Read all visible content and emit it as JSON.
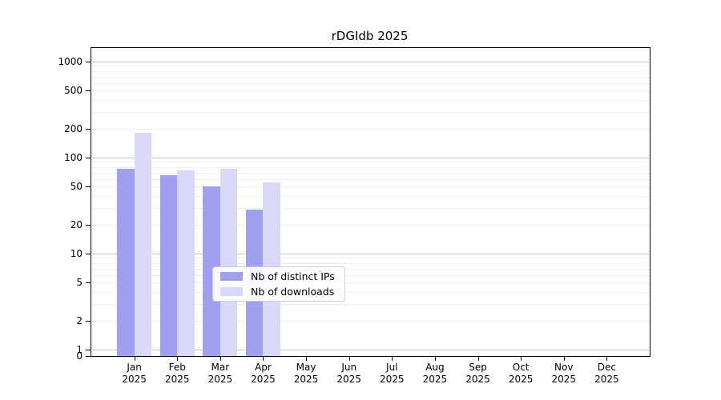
{
  "title": "rDGIdb 2025",
  "chart_data": {
    "type": "bar",
    "title": "rDGIdb 2025",
    "categories": [
      "Jan 2025",
      "Feb 2025",
      "Mar 2025",
      "Apr 2025",
      "May 2025",
      "Jun 2025",
      "Jul 2025",
      "Aug 2025",
      "Sep 2025",
      "Oct 2025",
      "Nov 2025",
      "Dec 2025"
    ],
    "series": [
      {
        "name": "Nb of distinct IPs",
        "color": "#a0a0f0",
        "values": [
          77,
          65,
          50,
          29,
          null,
          null,
          null,
          null,
          null,
          null,
          null,
          null
        ]
      },
      {
        "name": "Nb of downloads",
        "color": "#d8d8f8",
        "values": [
          181,
          74,
          77,
          55,
          null,
          null,
          null,
          null,
          null,
          null,
          null,
          null
        ]
      }
    ],
    "xlabel": "",
    "ylabel": "",
    "yscale": "symlog",
    "y_ticks": [
      0,
      1,
      2,
      5,
      10,
      20,
      50,
      100,
      200,
      500,
      1000
    ],
    "ylim": [
      0,
      1400
    ],
    "grid": true,
    "legend_position": "inside-bottom-center",
    "legend_entries": [
      "Nb of distinct IPs",
      "Nb of downloads"
    ]
  },
  "colors": {
    "major_grid": "#c9c9c9",
    "minor_grid": "#efefef",
    "spine": "#000000",
    "legend_border": "#cccccc"
  }
}
